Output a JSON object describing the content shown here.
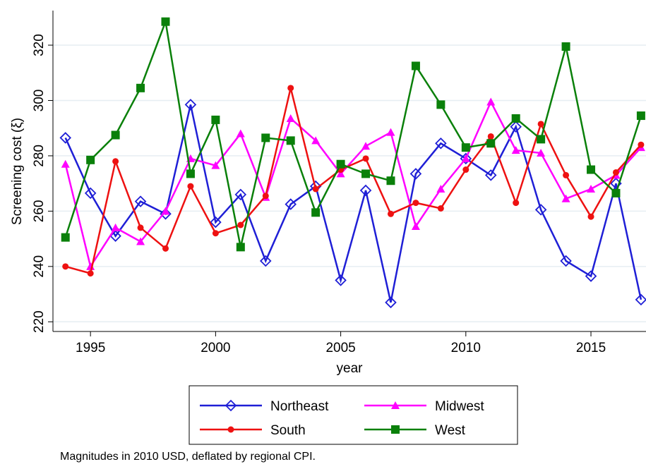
{
  "chart_data": {
    "type": "line",
    "x_label": "year",
    "y_label": "Screening cost (ξ)",
    "note": "Magnitudes in 2010 USD, deflated by regional CPI.",
    "x": [
      1994,
      1995,
      1996,
      1997,
      1998,
      1999,
      2000,
      2001,
      2002,
      2003,
      2004,
      2005,
      2006,
      2007,
      2008,
      2009,
      2010,
      2011,
      2012,
      2013,
      2014,
      2015,
      2016,
      2017
    ],
    "series": [
      {
        "name": "Northeast",
        "color": "#1f1fd6",
        "marker": "diamond",
        "values": [
          286.5,
          266.5,
          251,
          263.5,
          259,
          298.5,
          256,
          266,
          242,
          262.5,
          269,
          235,
          267.5,
          227,
          273.5,
          284.5,
          279,
          273,
          290.5,
          260.5,
          242,
          236.5,
          270,
          228
        ]
      },
      {
        "name": "Midwest",
        "color": "#ff00ff",
        "marker": "triangle",
        "values": [
          277,
          240,
          254,
          249,
          260,
          279,
          276.5,
          288,
          265,
          293.5,
          285.5,
          273.5,
          283.5,
          288.5,
          254.5,
          268,
          279,
          299.5,
          282,
          281,
          264.5,
          268,
          273,
          283
        ]
      },
      {
        "name": "South",
        "color": "#ee1111",
        "marker": "circle",
        "values": [
          240,
          237.5,
          278,
          254,
          246.5,
          269,
          252,
          255,
          265.5,
          304.5,
          268,
          275,
          279,
          259,
          263,
          261,
          275,
          287,
          263,
          291.5,
          273,
          258,
          274,
          284
        ]
      },
      {
        "name": "West",
        "color": "#0a800a",
        "marker": "square",
        "values": [
          250.5,
          278.5,
          287.5,
          304.5,
          328.5,
          273.5,
          293,
          247,
          286.5,
          285.5,
          259.5,
          277,
          273.5,
          271,
          312.5,
          298.5,
          283,
          284.5,
          293.5,
          286,
          319.5,
          275,
          266.5,
          294.5
        ]
      }
    ],
    "xlim": [
      1993.5,
      2017.2
    ],
    "xticks": [
      1995,
      2000,
      2005,
      2010,
      2015
    ],
    "ylim": [
      216.5,
      332.5
    ],
    "yticks": [
      220,
      240,
      260,
      280,
      300,
      320
    ],
    "grid": true
  }
}
